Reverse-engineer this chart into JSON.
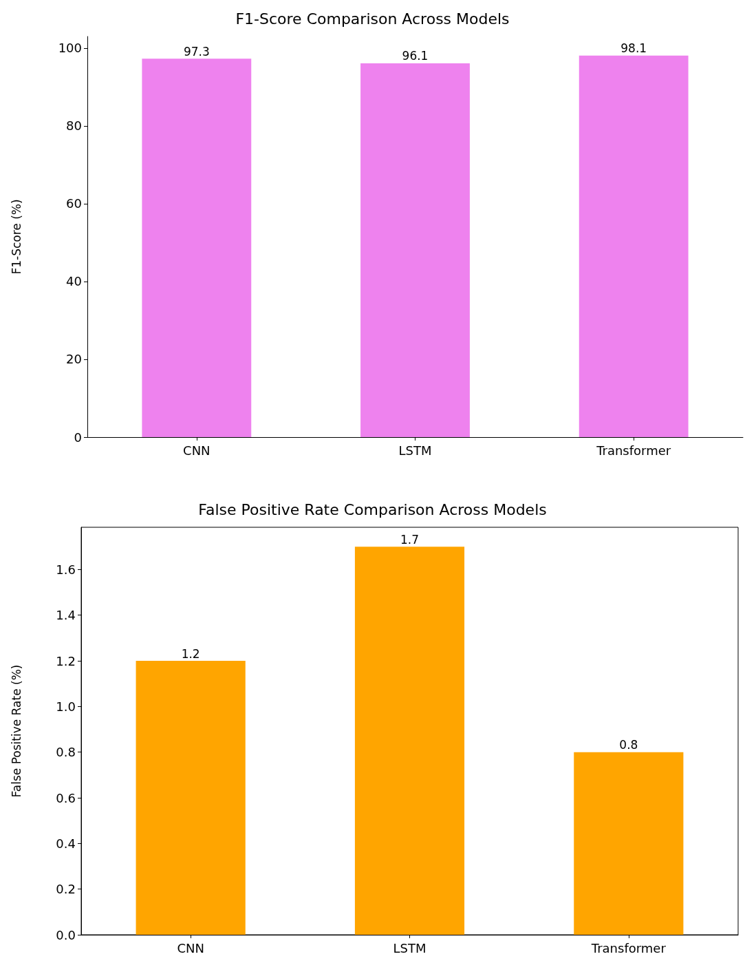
{
  "chart_data": [
    {
      "type": "bar",
      "title": "F1-Score Comparison Across Models",
      "ylabel": "F1-Score (%)",
      "categories": [
        "CNN",
        "LSTM",
        "Transformer"
      ],
      "values": [
        97.3,
        96.1,
        98.1
      ],
      "color": "#ee82ee",
      "ylim": [
        0,
        103
      ],
      "yticks": [
        0,
        20,
        40,
        60,
        80,
        100
      ],
      "data_labels": true
    },
    {
      "type": "bar",
      "title": "False Positive Rate Comparison Across Models",
      "ylabel": "False Positive Rate (%)",
      "categories": [
        "CNN",
        "LSTM",
        "Transformer"
      ],
      "values": [
        1.2,
        1.7,
        0.8
      ],
      "color": "#ffa500",
      "ylim": [
        0,
        1.785
      ],
      "yticks": [
        {
          "value": 0,
          "label": "0.0"
        },
        {
          "value": 0.2,
          "label": "0.2"
        },
        {
          "value": 0.4,
          "label": "0.4"
        },
        {
          "value": 0.6,
          "label": "0.6"
        },
        {
          "value": 0.8,
          "label": "0.8"
        },
        {
          "value": 1.0,
          "label": "1.0"
        },
        {
          "value": 1.2,
          "label": "1.2"
        },
        {
          "value": 1.4,
          "label": "1.4"
        },
        {
          "value": 1.6,
          "label": "1.6"
        }
      ],
      "data_labels": true
    }
  ]
}
